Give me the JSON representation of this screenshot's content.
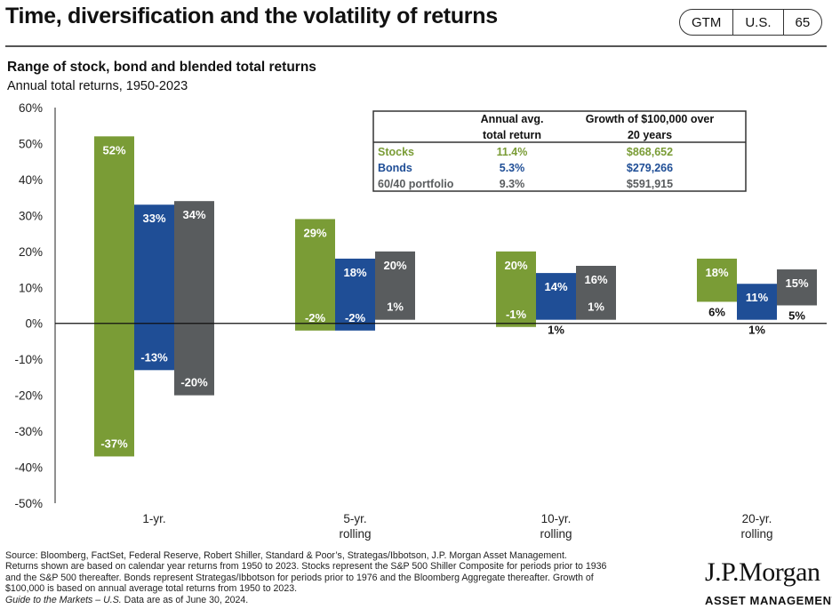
{
  "header": {
    "title": "Time, diversification and the volatility of returns",
    "tags": [
      "GTM",
      "U.S.",
      "65"
    ]
  },
  "chart_data": {
    "type": "bar",
    "title": "Range of stock, bond and blended total returns",
    "subtitle": "Annual total returns, 1950-2023",
    "categories": [
      "1-yr.",
      "5-yr. rolling",
      "10-yr. rolling",
      "20-yr. rolling"
    ],
    "category_labels": [
      [
        "1-yr."
      ],
      [
        "5-yr.",
        "rolling"
      ],
      [
        "10-yr.",
        "rolling"
      ],
      [
        "20-yr.",
        "rolling"
      ]
    ],
    "ylim": [
      -50,
      60
    ],
    "yticks": [
      -50,
      -40,
      -30,
      -20,
      -10,
      0,
      10,
      20,
      30,
      40,
      50,
      60
    ],
    "ytick_labels": [
      "-50%",
      "-40%",
      "-30%",
      "-20%",
      "-10%",
      "0%",
      "10%",
      "20%",
      "30%",
      "40%",
      "50%",
      "60%"
    ],
    "series": [
      {
        "name": "Stocks",
        "color": "#7a9c36",
        "min": [
          -37,
          -2,
          -1,
          6
        ],
        "max": [
          52,
          29,
          20,
          18
        ],
        "min_labels": [
          "-37%",
          "-2%",
          "-1%",
          "6%"
        ],
        "max_labels": [
          "52%",
          "29%",
          "20%",
          "18%"
        ]
      },
      {
        "name": "Bonds",
        "color": "#1f4e96",
        "min": [
          -13,
          -2,
          1,
          1
        ],
        "max": [
          33,
          18,
          14,
          11
        ],
        "min_labels": [
          "-13%",
          "-2%",
          "1%",
          "1%"
        ],
        "max_labels": [
          "33%",
          "18%",
          "14%",
          "11%"
        ]
      },
      {
        "name": "60/40 portfolio",
        "color": "#595c5e",
        "min": [
          -20,
          1,
          1,
          5
        ],
        "max": [
          34,
          20,
          16,
          15
        ],
        "min_labels": [
          "-20%",
          "1%",
          "1%",
          "5%"
        ],
        "max_labels": [
          "34%",
          "20%",
          "16%",
          "15%"
        ]
      }
    ],
    "grid": false,
    "legend_table": {
      "headers": [
        [
          "",
          ""
        ],
        [
          "Annual avg.",
          "total return"
        ],
        [
          "Growth of $100,000 over",
          "20 years"
        ]
      ],
      "rows": [
        {
          "name": "Stocks",
          "avg": "11.4%",
          "growth": "$868,652",
          "color": "#7a9c36"
        },
        {
          "name": "Bonds",
          "avg": "5.3%",
          "growth": "$279,266",
          "color": "#1f4e96"
        },
        {
          "name": "60/40 portfolio",
          "avg": "9.3%",
          "growth": "$591,915",
          "color": "#595c5e"
        }
      ]
    }
  },
  "footnote": {
    "lines": [
      "Source: Bloomberg, FactSet, Federal Reserve, Robert Shiller, Standard & Poor’s, Strategas/Ibbotson, J.P. Morgan Asset Management.",
      "Returns shown are based on calendar year returns from 1950 to 2023. Stocks represent the S&P 500 Shiller Composite for periods prior to 1936",
      "and the S&P 500 thereafter. Bonds represent Strategas/Ibbotson for periods prior to 1976 and the Bloomberg Aggregate thereafter. Growth of",
      "$100,000 is based on annual average total returns from 1950 to 2023."
    ],
    "guide_italic": "Guide to the Markets – U.S.",
    "guide_rest": " Data are as of June 30, 2024."
  },
  "logo": {
    "main": "J.P.Morgan",
    "sub": "ASSET MANAGEMENT"
  }
}
